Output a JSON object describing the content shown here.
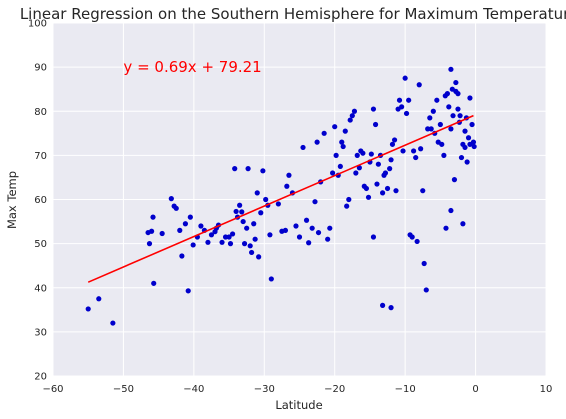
{
  "chart_data": {
    "type": "scatter",
    "title": "Linear Regression on the Southern Hemisphere for Maximum Temperature",
    "xlabel": "Latitude",
    "ylabel": "Max Temp",
    "xlim": [
      -60,
      10
    ],
    "ylim": [
      20,
      100
    ],
    "xticks": [
      -60,
      -50,
      -40,
      -30,
      -20,
      -10,
      0,
      10
    ],
    "yticks": [
      20,
      30,
      40,
      50,
      60,
      70,
      80,
      90,
      100
    ],
    "xtick_labels": [
      "−60",
      "−50",
      "−40",
      "−30",
      "−20",
      "−10",
      "0",
      "10"
    ],
    "ytick_labels": [
      "20",
      "30",
      "40",
      "50",
      "60",
      "70",
      "80",
      "90",
      "100"
    ],
    "grid": true,
    "background": "#EAEAF2",
    "point_color": "#0000CC",
    "line_color": "#FF0000",
    "annotation": {
      "text": "y = 0.69x + 79.21",
      "x": -50,
      "y": 90,
      "color": "#FF0000"
    },
    "regression": {
      "slope": 0.69,
      "intercept": 79.21,
      "x_range": [
        -55,
        -0.3
      ]
    },
    "series": [
      {
        "points": [
          [
            -55,
            35.2
          ],
          [
            -53.5,
            37.5
          ],
          [
            -51.5,
            32
          ],
          [
            -46.5,
            52.5
          ],
          [
            -46.3,
            50
          ],
          [
            -46,
            52.8
          ],
          [
            -45.8,
            56
          ],
          [
            -45.7,
            41
          ],
          [
            -44.5,
            52.3
          ],
          [
            -43.2,
            60.2
          ],
          [
            -42.8,
            58.5
          ],
          [
            -42.5,
            58
          ],
          [
            -42,
            53
          ],
          [
            -41.7,
            47.2
          ],
          [
            -41.2,
            54.5
          ],
          [
            -40.8,
            39.3
          ],
          [
            -40.5,
            56
          ],
          [
            -40.1,
            49.7
          ],
          [
            -39.5,
            51.5
          ],
          [
            -39,
            54
          ],
          [
            -38.5,
            53
          ],
          [
            -38,
            50.3
          ],
          [
            -37.5,
            52
          ],
          [
            -37,
            52.7
          ],
          [
            -36.8,
            53.5
          ],
          [
            -36.5,
            54.2
          ],
          [
            -36,
            50.3
          ],
          [
            -35.5,
            51.5
          ],
          [
            -35,
            51.5
          ],
          [
            -34.8,
            50
          ],
          [
            -34.5,
            52.2
          ],
          [
            -34.2,
            67
          ],
          [
            -34,
            57.3
          ],
          [
            -33.8,
            56
          ],
          [
            -33.5,
            58.7
          ],
          [
            -33.2,
            57.2
          ],
          [
            -33,
            55
          ],
          [
            -32.8,
            50
          ],
          [
            -32.5,
            53.5
          ],
          [
            -32.3,
            67
          ],
          [
            -32,
            49.5
          ],
          [
            -31.8,
            48
          ],
          [
            -31.5,
            54.5
          ],
          [
            -31.3,
            51
          ],
          [
            -31,
            61.5
          ],
          [
            -30.8,
            47
          ],
          [
            -30.5,
            57
          ],
          [
            -30.2,
            66.5
          ],
          [
            -29.8,
            60
          ],
          [
            -29.5,
            58.7
          ],
          [
            -29.2,
            52
          ],
          [
            -29,
            42
          ],
          [
            -28,
            59
          ],
          [
            -27.5,
            52.8
          ],
          [
            -27,
            53
          ],
          [
            -26.8,
            63
          ],
          [
            -26.5,
            65.5
          ],
          [
            -26,
            61.5
          ],
          [
            -25.5,
            54
          ],
          [
            -25,
            51.5
          ],
          [
            -24.5,
            71.8
          ],
          [
            -24,
            55.3
          ],
          [
            -23.7,
            50.2
          ],
          [
            -23.2,
            53.5
          ],
          [
            -22.8,
            59.5
          ],
          [
            -22.5,
            73
          ],
          [
            -22.3,
            52.5
          ],
          [
            -22,
            64
          ],
          [
            -21.5,
            75
          ],
          [
            -21,
            51
          ],
          [
            -20.7,
            53.5
          ],
          [
            -20.3,
            66
          ],
          [
            -20,
            76.5
          ],
          [
            -19.8,
            70
          ],
          [
            -19.5,
            65.5
          ],
          [
            -19.2,
            67.5
          ],
          [
            -19,
            73
          ],
          [
            -18.8,
            72
          ],
          [
            -18.5,
            75.5
          ],
          [
            -18.3,
            58.5
          ],
          [
            -18,
            60
          ],
          [
            -17.8,
            78
          ],
          [
            -17.5,
            79
          ],
          [
            -17.2,
            80
          ],
          [
            -17,
            66
          ],
          [
            -16.8,
            70
          ],
          [
            -16.5,
            67.2
          ],
          [
            -16.3,
            71
          ],
          [
            -16,
            70.5
          ],
          [
            -15.8,
            63
          ],
          [
            -15.5,
            62.5
          ],
          [
            -15.2,
            60.5
          ],
          [
            -15,
            68.5
          ],
          [
            -14.8,
            70.3
          ],
          [
            -14.5,
            80.5
          ],
          [
            -14.2,
            77
          ],
          [
            -14,
            63.5
          ],
          [
            -13.8,
            68
          ],
          [
            -13.5,
            70
          ],
          [
            -13.2,
            61.5
          ],
          [
            -13,
            65.5
          ],
          [
            -12.8,
            66
          ],
          [
            -12.5,
            62.5
          ],
          [
            -12.2,
            67
          ],
          [
            -12,
            69
          ],
          [
            -11.8,
            72.5
          ],
          [
            -11.5,
            73.5
          ],
          [
            -11.3,
            62
          ],
          [
            -11,
            80.5
          ],
          [
            -10.8,
            82.5
          ],
          [
            -10.5,
            81
          ],
          [
            -10.3,
            71
          ],
          [
            -10,
            87.5
          ],
          [
            -9.8,
            79.5
          ],
          [
            -9.5,
            82.5
          ],
          [
            -9.3,
            52
          ],
          [
            -9,
            51.5
          ],
          [
            -8.8,
            71
          ],
          [
            -8.5,
            69.5
          ],
          [
            -8.3,
            50.5
          ],
          [
            -8,
            86
          ],
          [
            -7.8,
            71.5
          ],
          [
            -7.5,
            62
          ],
          [
            -7.3,
            45.5
          ],
          [
            -7,
            39.5
          ],
          [
            -6.8,
            76
          ],
          [
            -6.5,
            78.5
          ],
          [
            -6.3,
            76
          ],
          [
            -6,
            80
          ],
          [
            -5.8,
            75
          ],
          [
            -5.5,
            82.5
          ],
          [
            -5.3,
            73
          ],
          [
            -5,
            77
          ],
          [
            -4.8,
            72.5
          ],
          [
            -4.5,
            70
          ],
          [
            -4.3,
            83.5
          ],
          [
            -4,
            84
          ],
          [
            -3.8,
            81
          ],
          [
            -3.5,
            76
          ],
          [
            -3.2,
            79
          ],
          [
            -3,
            64.5
          ],
          [
            -2.8,
            86.5
          ],
          [
            -2.5,
            80.5
          ],
          [
            -2.3,
            77.5
          ],
          [
            -2,
            69.5
          ],
          [
            -1.8,
            54.5
          ],
          [
            -1.5,
            75.5
          ],
          [
            -1.3,
            78.5
          ],
          [
            -1,
            74
          ],
          [
            -0.8,
            83
          ],
          [
            -3.5,
            89.5
          ],
          [
            -3.3,
            85
          ],
          [
            -2.8,
            84.5
          ],
          [
            -2.5,
            84
          ],
          [
            -2.2,
            79
          ],
          [
            -1.8,
            72.5
          ],
          [
            -1.5,
            71.8
          ],
          [
            -1.2,
            68.5
          ],
          [
            -0.8,
            72.5
          ],
          [
            -0.5,
            77
          ],
          [
            -0.3,
            73
          ],
          [
            -0.2,
            72
          ],
          [
            -4.2,
            53.5
          ],
          [
            -3.5,
            57.5
          ],
          [
            -12,
            35.5
          ],
          [
            -14.5,
            51.5
          ],
          [
            -13.2,
            36
          ]
        ]
      }
    ]
  }
}
